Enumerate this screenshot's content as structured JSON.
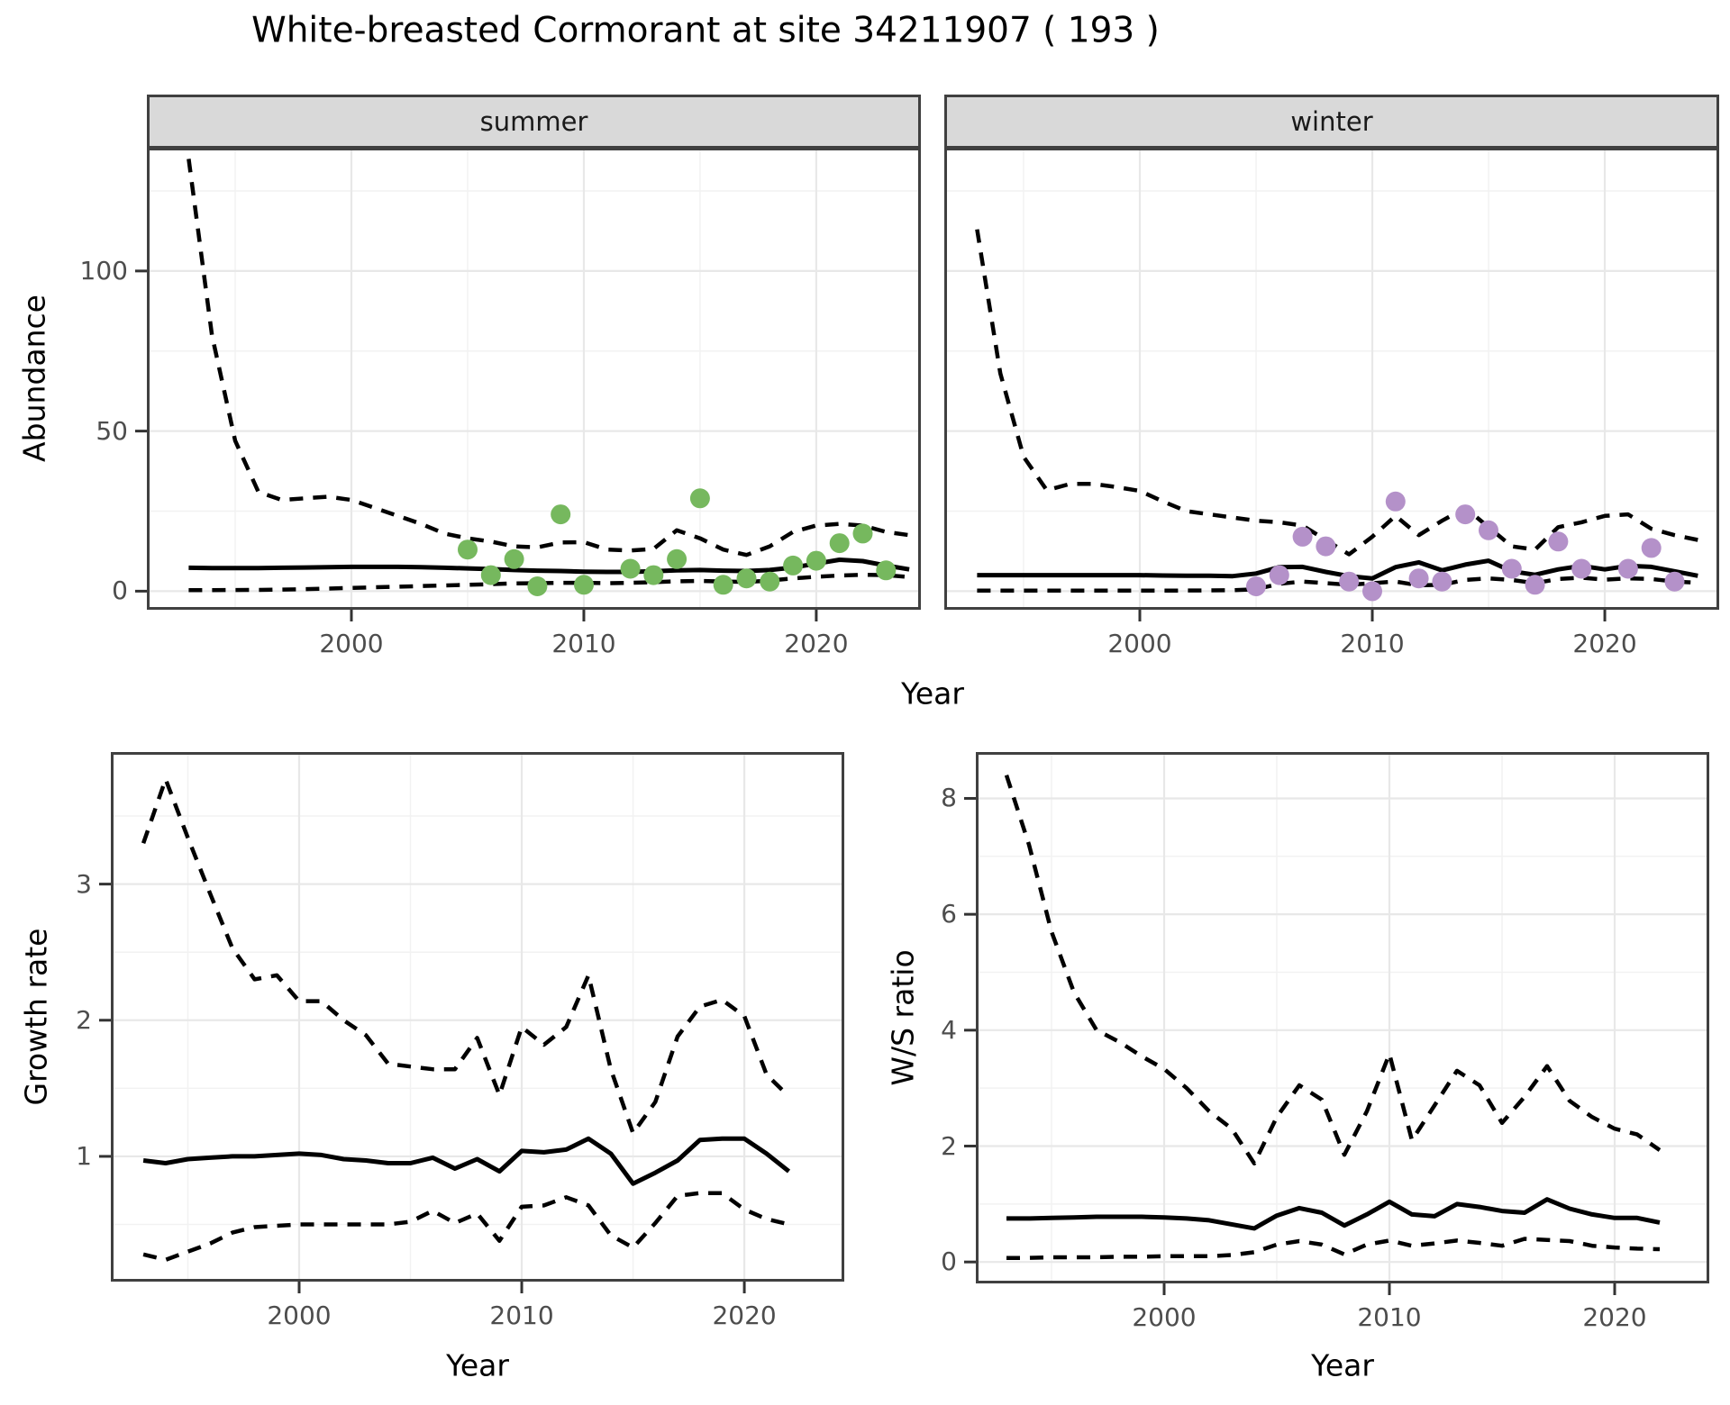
{
  "title": "White-breasted Cormorant at site 34211907 ( 193 )",
  "axes": {
    "x_label_top": "Year",
    "x_label_bottom_left": "Year",
    "x_label_bottom_right": "Year",
    "abundance_label": "Abundance",
    "growth_label": "Growth rate",
    "ws_label": "W/S ratio"
  },
  "facets": {
    "summer": "summer",
    "winter": "winter"
  },
  "colors": {
    "summer_point": "#76b85e",
    "winter_point": "#b491c9",
    "line": "#000000",
    "grid_major": "#e8e8e8",
    "grid_minor": "#f2f2f2",
    "panel_border": "#404040",
    "tick_text": "#4d4d4d",
    "strip_bg": "#d9d9d9"
  },
  "chart_data": [
    {
      "id": "abundance-summer",
      "type": "line",
      "facet_label": "summer",
      "xlabel": "Year",
      "ylabel": "Abundance",
      "x_ticks": [
        2000,
        2010,
        2020
      ],
      "y_ticks": [
        0,
        50,
        100
      ],
      "xlim": [
        1991.2,
        2024.5
      ],
      "ylim": [
        -5.8,
        138.5
      ],
      "grid": true,
      "legend_position": "none",
      "years": [
        1993,
        1994,
        1995,
        1996,
        1997,
        1998,
        1999,
        2000,
        2001,
        2002,
        2003,
        2004,
        2005,
        2006,
        2007,
        2008,
        2009,
        2010,
        2011,
        2012,
        2013,
        2014,
        2015,
        2016,
        2017,
        2018,
        2019,
        2020,
        2021,
        2022,
        2023,
        2024
      ],
      "series": [
        {
          "name": "upper_95ci",
          "style": "dashed",
          "values": [
            135,
            80,
            47,
            31,
            28.5,
            29,
            29.5,
            28.5,
            26,
            23.5,
            21,
            18,
            16.5,
            15.5,
            14,
            13.7,
            15.2,
            15.3,
            13,
            12.7,
            13.2,
            19,
            16.5,
            13,
            11.3,
            14,
            18.5,
            20.5,
            21,
            20.5,
            18.5,
            17.5
          ]
        },
        {
          "name": "median",
          "style": "solid",
          "values": [
            7.3,
            7.2,
            7.2,
            7.2,
            7.3,
            7.4,
            7.5,
            7.6,
            7.6,
            7.6,
            7.5,
            7.3,
            7.1,
            6.9,
            6.6,
            6.4,
            6.3,
            6.1,
            6.0,
            6.0,
            6.2,
            6.5,
            6.6,
            6.4,
            6.3,
            6.6,
            7.4,
            8.6,
            9.8,
            9.4,
            8.0,
            6.8
          ]
        },
        {
          "name": "lower_95ci",
          "style": "dashed",
          "values": [
            0.3,
            0.3,
            0.35,
            0.4,
            0.5,
            0.6,
            0.8,
            1.0,
            1.2,
            1.4,
            1.6,
            1.8,
            2.0,
            2.2,
            2.4,
            2.5,
            2.6,
            2.6,
            2.5,
            2.6,
            2.8,
            3.1,
            3.2,
            3.0,
            2.9,
            3.3,
            4.0,
            4.5,
            4.9,
            5.1,
            5.0,
            4.4
          ]
        }
      ],
      "points": {
        "name": "observed_counts",
        "color": "#76b85e",
        "years": [
          2005,
          2006,
          2007,
          2008,
          2009,
          2010,
          2012,
          2013,
          2014,
          2015,
          2016,
          2017,
          2018,
          2019,
          2020,
          2021,
          2022,
          2023
        ],
        "values": [
          13,
          5,
          10,
          1.5,
          24,
          2,
          7,
          5,
          10,
          29,
          2,
          4,
          3,
          8,
          9.5,
          15,
          18,
          6.5
        ]
      }
    },
    {
      "id": "abundance-winter",
      "type": "line",
      "facet_label": "winter",
      "xlabel": "Year",
      "ylabel": "Abundance",
      "x_ticks": [
        2000,
        2010,
        2020
      ],
      "y_ticks": [
        0,
        50,
        100
      ],
      "xlim": [
        1991.59,
        2024.92
      ],
      "ylim": [
        -5.8,
        138.5
      ],
      "grid": true,
      "legend_position": "none",
      "years": [
        1993,
        1994,
        1995,
        1996,
        1997,
        1998,
        1999,
        2000,
        2001,
        2002,
        2003,
        2004,
        2005,
        2006,
        2007,
        2008,
        2009,
        2010,
        2011,
        2012,
        2013,
        2014,
        2015,
        2016,
        2017,
        2018,
        2019,
        2020,
        2021,
        2022,
        2023,
        2024
      ],
      "series": [
        {
          "name": "upper_95ci",
          "style": "dashed",
          "values": [
            113,
            68,
            42,
            31.5,
            33.5,
            33.5,
            32.5,
            31.3,
            28,
            25,
            24,
            23,
            22,
            21.5,
            20.5,
            16,
            11.5,
            17,
            23.5,
            17.5,
            22,
            26,
            20,
            14,
            13,
            20,
            21.5,
            23.5,
            24,
            19.5,
            17.5,
            16
          ]
        },
        {
          "name": "median",
          "style": "solid",
          "values": [
            5,
            5,
            5,
            5,
            5,
            5,
            5,
            5,
            4.9,
            4.8,
            4.8,
            4.7,
            5.5,
            7.5,
            7.6,
            6,
            4.7,
            4,
            7.5,
            9,
            6.5,
            8.3,
            9.5,
            6.2,
            5.1,
            6.8,
            7.9,
            6.8,
            7.9,
            7.6,
            6.2,
            4.8
          ]
        },
        {
          "name": "lower_95ci",
          "style": "dashed",
          "values": [
            0.2,
            0.2,
            0.2,
            0.2,
            0.2,
            0.2,
            0.2,
            0.2,
            0.2,
            0.2,
            0.25,
            0.3,
            0.6,
            2.3,
            3.0,
            2.5,
            2.0,
            2.5,
            3.0,
            1.8,
            2.0,
            3.5,
            4.0,
            3.5,
            2.5,
            3.8,
            4.2,
            3.6,
            4.0,
            3.8,
            3.0,
            2.6
          ]
        }
      ],
      "points": {
        "name": "observed_counts",
        "color": "#b491c9",
        "years": [
          2005,
          2006,
          2007,
          2008,
          2009,
          2010,
          2011,
          2012,
          2013,
          2014,
          2015,
          2016,
          2017,
          2018,
          2019,
          2021,
          2022,
          2023
        ],
        "values": [
          1.5,
          5,
          17,
          14,
          3,
          0,
          28,
          4,
          3,
          24,
          19,
          7,
          2,
          15.5,
          7,
          7,
          13.5,
          3
        ]
      }
    },
    {
      "id": "growth-rate",
      "type": "line",
      "facet_label": "",
      "xlabel": "Year",
      "ylabel": "Growth rate",
      "x_ticks": [
        2000,
        2010,
        2020
      ],
      "y_ticks": [
        1,
        2,
        3
      ],
      "xlim": [
        1991.54,
        2024.49
      ],
      "ylim": [
        0.08,
        3.97
      ],
      "grid": true,
      "legend_position": "none",
      "years": [
        1993,
        1994,
        1995,
        1996,
        1997,
        1998,
        1999,
        2000,
        2001,
        2002,
        2003,
        2004,
        2005,
        2006,
        2007,
        2008,
        2009,
        2010,
        2011,
        2012,
        2013,
        2014,
        2015,
        2016,
        2017,
        2018,
        2019,
        2020,
        2021,
        2022
      ],
      "series": [
        {
          "name": "upper_95ci",
          "style": "dashed",
          "values": [
            3.3,
            3.77,
            3.34,
            2.93,
            2.53,
            2.3,
            2.33,
            2.14,
            2.14,
            2.0,
            1.89,
            1.68,
            1.66,
            1.64,
            1.64,
            1.87,
            1.45,
            1.95,
            1.82,
            1.95,
            2.33,
            1.64,
            1.17,
            1.4,
            1.88,
            2.1,
            2.15,
            2.03,
            1.6,
            1.44
          ]
        },
        {
          "name": "median",
          "style": "solid",
          "values": [
            0.97,
            0.95,
            0.98,
            0.99,
            1.0,
            1.0,
            1.01,
            1.02,
            1.01,
            0.98,
            0.97,
            0.95,
            0.95,
            0.99,
            0.91,
            0.98,
            0.89,
            1.04,
            1.03,
            1.05,
            1.13,
            1.02,
            0.8,
            0.88,
            0.97,
            1.12,
            1.13,
            1.13,
            1.02,
            0.89
          ]
        },
        {
          "name": "lower_95ci",
          "style": "dashed",
          "values": [
            0.28,
            0.24,
            0.3,
            0.36,
            0.44,
            0.48,
            0.49,
            0.5,
            0.5,
            0.5,
            0.5,
            0.5,
            0.52,
            0.6,
            0.51,
            0.58,
            0.38,
            0.63,
            0.64,
            0.7,
            0.64,
            0.42,
            0.33,
            0.51,
            0.71,
            0.73,
            0.73,
            0.61,
            0.54,
            0.5
          ]
        }
      ],
      "points": null
    },
    {
      "id": "ws-ratio",
      "type": "line",
      "facet_label": "",
      "xlabel": "Year",
      "ylabel": "W/S ratio",
      "x_ticks": [
        2000,
        2010,
        2020
      ],
      "y_ticks": [
        0,
        2,
        4,
        6,
        8
      ],
      "xlim": [
        1991.64,
        2024.2
      ],
      "ylim": [
        -0.37,
        8.8
      ],
      "grid": true,
      "legend_position": "none",
      "years": [
        1993,
        1994,
        1995,
        1996,
        1997,
        1998,
        1999,
        2000,
        2001,
        2002,
        2003,
        2004,
        2005,
        2006,
        2007,
        2008,
        2009,
        2010,
        2011,
        2012,
        2013,
        2014,
        2015,
        2016,
        2017,
        2018,
        2019,
        2020,
        2021,
        2022
      ],
      "series": [
        {
          "name": "upper_95ci",
          "style": "dashed",
          "values": [
            8.4,
            7.2,
            5.7,
            4.65,
            4.0,
            3.8,
            3.55,
            3.33,
            3.0,
            2.6,
            2.3,
            1.7,
            2.5,
            3.05,
            2.8,
            1.85,
            2.6,
            3.59,
            2.1,
            2.7,
            3.3,
            3.05,
            2.4,
            2.85,
            3.38,
            2.78,
            2.5,
            2.3,
            2.2,
            1.93
          ]
        },
        {
          "name": "median",
          "style": "solid",
          "values": [
            0.75,
            0.75,
            0.76,
            0.77,
            0.78,
            0.78,
            0.78,
            0.77,
            0.75,
            0.72,
            0.65,
            0.58,
            0.8,
            0.93,
            0.85,
            0.63,
            0.82,
            1.04,
            0.82,
            0.79,
            1.0,
            0.95,
            0.88,
            0.85,
            1.08,
            0.92,
            0.82,
            0.76,
            0.76,
            0.68
          ]
        },
        {
          "name": "lower_95ci",
          "style": "dashed",
          "values": [
            0.07,
            0.07,
            0.08,
            0.08,
            0.08,
            0.09,
            0.09,
            0.1,
            0.1,
            0.1,
            0.12,
            0.17,
            0.3,
            0.36,
            0.3,
            0.13,
            0.3,
            0.37,
            0.28,
            0.32,
            0.37,
            0.33,
            0.28,
            0.4,
            0.38,
            0.36,
            0.28,
            0.25,
            0.23,
            0.22
          ]
        }
      ],
      "points": null
    }
  ]
}
